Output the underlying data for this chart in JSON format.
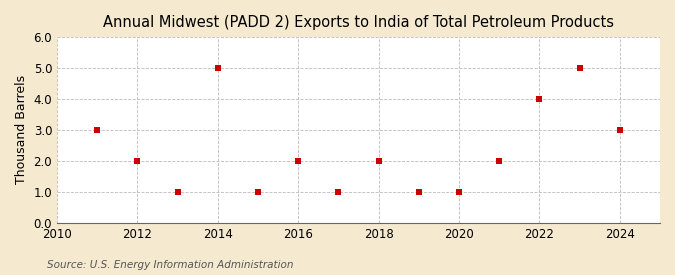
{
  "title": "Annual Midwest (PADD 2) Exports to India of Total Petroleum Products",
  "ylabel": "Thousand Barrels",
  "source": "Source: U.S. Energy Information Administration",
  "figure_bg_color": "#f5e9d0",
  "plot_bg_color": "#ffffff",
  "x_values": [
    2011,
    2012,
    2013,
    2014,
    2015,
    2016,
    2017,
    2018,
    2019,
    2020,
    2021,
    2022,
    2023,
    2024
  ],
  "y_values": [
    3,
    2,
    1,
    5,
    1,
    2,
    1,
    2,
    1,
    1,
    2,
    4,
    5,
    3
  ],
  "xlim": [
    2010,
    2025
  ],
  "ylim": [
    0.0,
    6.0
  ],
  "yticks": [
    0.0,
    1.0,
    2.0,
    3.0,
    4.0,
    5.0,
    6.0
  ],
  "xticks": [
    2010,
    2012,
    2014,
    2016,
    2018,
    2020,
    2022,
    2024
  ],
  "marker_color": "#cc0000",
  "marker": "s",
  "marker_size": 4,
  "grid_color": "#bbbbbb",
  "grid_style": "--",
  "title_fontsize": 10.5,
  "axis_label_fontsize": 9,
  "tick_fontsize": 8.5,
  "source_fontsize": 7.5
}
